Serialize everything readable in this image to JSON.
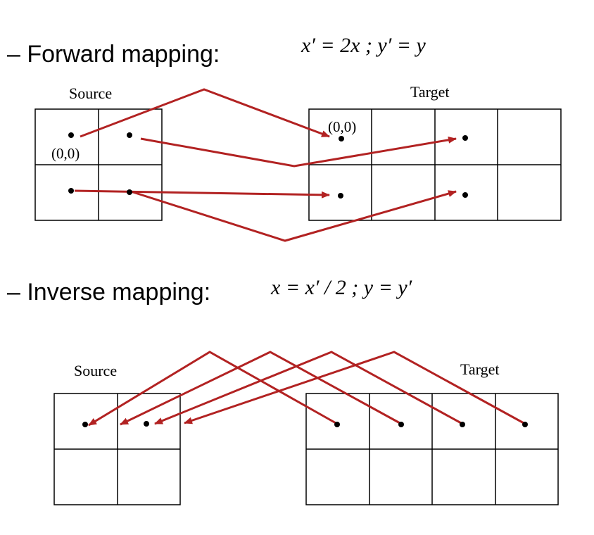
{
  "forward": {
    "heading": "– Forward mapping:",
    "formula": "x′ = 2x ;  y′ = y",
    "source_label": "Source",
    "target_label": "Target",
    "source_origin_label": "(0,0)",
    "target_origin_label": "(0,0)"
  },
  "inverse": {
    "heading": "– Inverse mapping:",
    "formula": "x = x′ / 2 ;  y = y′",
    "source_label": "Source",
    "target_label": "Target"
  },
  "colors": {
    "arrow": "#B22222",
    "grid": "#000000",
    "dot": "#000000"
  }
}
